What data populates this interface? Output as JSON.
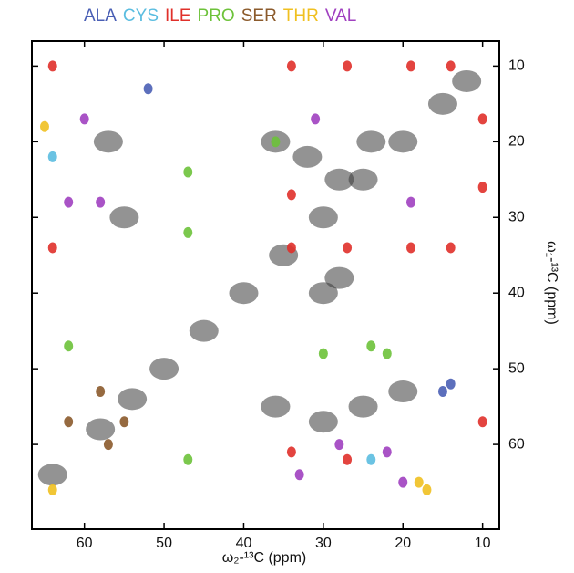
{
  "chart_data": {
    "type": "scatter",
    "xlabel": "ω₂-¹³C (ppm)",
    "ylabel": "ω₁-¹³C (ppm)",
    "xlim": [
      66.6,
      7.9
    ],
    "ylim": [
      6.7,
      71.2
    ],
    "xticks": [
      60,
      50,
      40,
      30,
      20,
      10
    ],
    "yticks": [
      10,
      20,
      30,
      40,
      50,
      60
    ],
    "legend": "top",
    "series": [
      {
        "color": "#3a3a3a",
        "x": [
          64,
          58,
          54,
          50,
          45,
          40,
          35,
          30,
          25,
          20,
          15,
          12,
          57,
          55,
          36,
          32,
          28,
          24,
          30,
          28,
          36,
          30,
          25,
          20
        ],
        "values": [
          64,
          58,
          54,
          50,
          45,
          40,
          35,
          30,
          25,
          20,
          15,
          12,
          20,
          30,
          20,
          22,
          25,
          20,
          40,
          38,
          55,
          57,
          55,
          53
        ]
      },
      {
        "name": "ALA",
        "color": "#4a5fb5",
        "x": [
          52,
          14,
          15
        ],
        "values": [
          13,
          52,
          53
        ]
      },
      {
        "name": "CYS",
        "color": "#5bbde0",
        "x": [
          64,
          24
        ],
        "values": [
          22,
          62
        ]
      },
      {
        "name": "ILE",
        "color": "#e0302a",
        "x": [
          64,
          64,
          34,
          34,
          34,
          27,
          27,
          19,
          19,
          14,
          14,
          10,
          10,
          10,
          34,
          27
        ],
        "values": [
          10,
          34,
          10,
          27,
          34,
          10,
          34,
          10,
          34,
          10,
          34,
          17,
          26,
          57,
          61,
          62
        ]
      },
      {
        "name": "PRO",
        "color": "#6dc23a",
        "x": [
          47,
          47,
          62,
          47,
          30,
          24,
          22,
          36
        ],
        "values": [
          24,
          32,
          47,
          62,
          48,
          47,
          48,
          20
        ]
      },
      {
        "name": "SER",
        "color": "#8b5a2b",
        "x": [
          58,
          57,
          62,
          55
        ],
        "values": [
          53,
          60,
          57,
          57
        ]
      },
      {
        "name": "THR",
        "color": "#f0c020",
        "x": [
          65,
          64,
          18,
          17
        ],
        "values": [
          18,
          66,
          65,
          66
        ]
      },
      {
        "name": "VAL",
        "color": "#a040c0",
        "x": [
          62,
          58,
          60,
          31,
          19,
          28,
          22,
          33,
          20
        ],
        "values": [
          28,
          28,
          17,
          17,
          28,
          60,
          61,
          64,
          65
        ]
      }
    ]
  }
}
